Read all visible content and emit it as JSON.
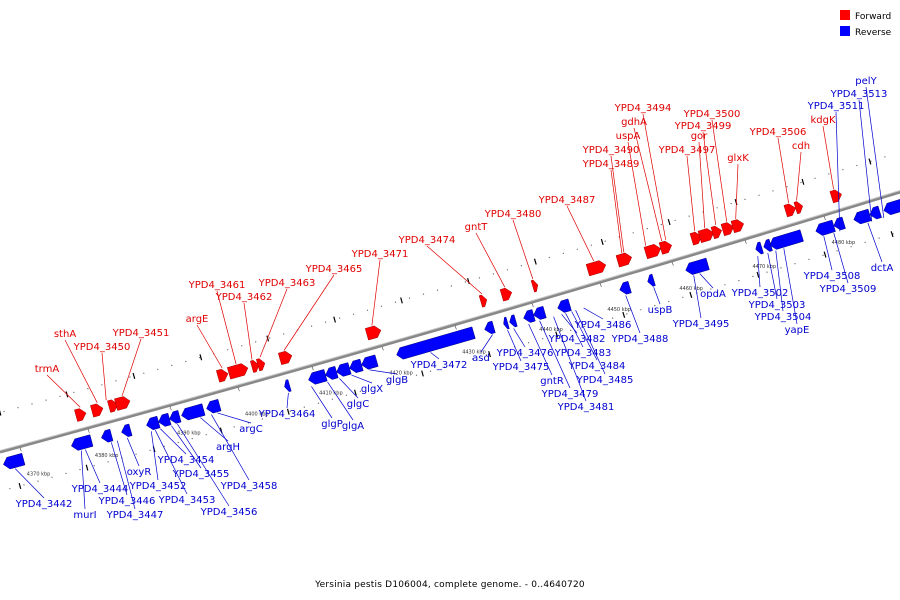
{
  "colors": {
    "forward": "#ff0000",
    "reverse": "#0000ff",
    "backbone": "#888888"
  },
  "legend": {
    "forward_label": "Forward",
    "reverse_label": "Reverse"
  },
  "caption": "Yersinia pestis D106004, complete genome. - 0..4640720",
  "axis_unit": "kbp",
  "axis_ticks": [
    4370,
    4380,
    4390,
    4400,
    4410,
    4420,
    4430,
    4440,
    4450,
    4460,
    4470,
    4480
  ],
  "forward_labels": [
    "trmA",
    "sthA",
    "YPD4_3450",
    "YPD4_3451",
    "argE",
    "YPD4_3461",
    "YPD4_3462",
    "YPD4_3463",
    "YPD4_3465",
    "YPD4_3471",
    "YPD4_3474",
    "gntT",
    "YPD4_3480",
    "YPD4_3487",
    "YPD4_3489",
    "YPD4_3490",
    "uspA",
    "gdhA",
    "YPD4_3494",
    "YPD4_3497",
    "gor",
    "YPD4_3499",
    "YPD4_3500",
    "glxK",
    "YPD4_3506",
    "cdh",
    "kdgK"
  ],
  "reverse_labels": [
    "YPD4_3442",
    "murI",
    "YPD4_3444",
    "YPD4_3446",
    "YPD4_3447",
    "oxyR",
    "YPD4_3452",
    "YPD4_3453",
    "YPD4_3454",
    "YPD4_3455",
    "YPD4_3456",
    "argH",
    "YPD4_3458",
    "argC",
    "YPD4_3464",
    "glgP",
    "glgA",
    "glgC",
    "glgX",
    "glgB",
    "YPD4_3472",
    "asd",
    "YPD4_3475",
    "YPD4_3476",
    "gntR",
    "YPD4_3479",
    "YPD4_3481",
    "YPD4_3482",
    "YPD4_3483",
    "YPD4_3484",
    "YPD4_3485",
    "YPD4_3486",
    "YPD4_3488",
    "uspB",
    "YPD4_3495",
    "opdA",
    "YPD4_3502",
    "YPD4_3503",
    "YPD4_3504",
    "yapE",
    "YPD4_3508",
    "YPD4_3509",
    "dctA",
    "YPD4_3511",
    "YPD4_3513",
    "pelY"
  ]
}
